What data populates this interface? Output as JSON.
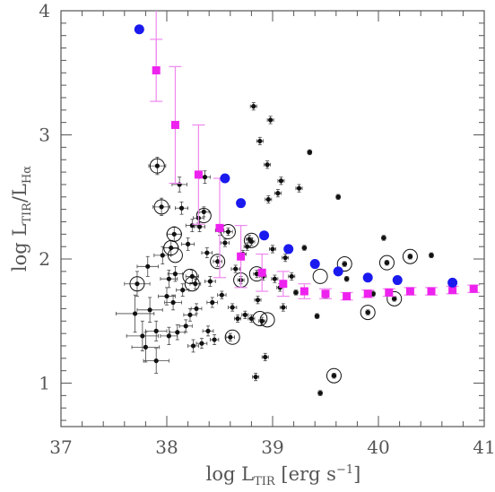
{
  "chart_data": {
    "type": "scatter",
    "title": "",
    "xlabel": {
      "main": "log L",
      "sub": "TIR",
      "unit": " [erg s",
      "sup": "−1",
      "close": "]"
    },
    "ylabel": {
      "main": "log L",
      "sub1": "TIR",
      "slash": "/L",
      "sub2": "Hα"
    },
    "xlim": [
      37,
      41
    ],
    "ylim": [
      0.65,
      4.0
    ],
    "xticks": [
      37,
      38,
      39,
      40,
      41
    ],
    "yticks": [
      1,
      2,
      3,
      4
    ],
    "grid": false,
    "legend": "none",
    "colors": {
      "axis": "#555555",
      "black": "#111111",
      "magenta": "#ee22ee",
      "magenta_err": "#ee88ee",
      "blue": "#1a1aee",
      "errbar": "#444444"
    },
    "series": [
      {
        "key": "regions",
        "marker": "small-black-dot",
        "points": [
          [
            37.7,
            1.56,
            0.18,
            0.15
          ],
          [
            37.72,
            1.8,
            0.12,
            0.1
          ],
          [
            37.77,
            1.38,
            0.15,
            0.12
          ],
          [
            37.8,
            1.29,
            0.13,
            0.12
          ],
          [
            37.82,
            1.94,
            0.1,
            0.08
          ],
          [
            37.84,
            1.59,
            0.12,
            0.1
          ],
          [
            37.9,
            1.18,
            0.12,
            0.1
          ],
          [
            37.9,
            1.42,
            0.1,
            0.08
          ],
          [
            37.91,
            2.75,
            0.08,
            0.07
          ],
          [
            37.95,
            2.42,
            0.08,
            0.07
          ],
          [
            37.96,
            2.03,
            0.08,
            0.07
          ],
          [
            38.0,
            1.7,
            0.08,
            0.07
          ],
          [
            38.02,
            1.84,
            0.08,
            0.07
          ],
          [
            38.02,
            1.38,
            0.08,
            0.07
          ],
          [
            38.04,
            2.09,
            0.07,
            0.06
          ],
          [
            38.06,
            1.65,
            0.08,
            0.06
          ],
          [
            38.07,
            2.2,
            0.07,
            0.06
          ],
          [
            38.08,
            1.88,
            0.07,
            0.06
          ],
          [
            38.1,
            1.41,
            0.07,
            0.06
          ],
          [
            38.12,
            2.6,
            0.07,
            0.06
          ],
          [
            38.14,
            2.41,
            0.06,
            0.05
          ],
          [
            38.15,
            1.75,
            0.06,
            0.05
          ],
          [
            38.18,
            1.46,
            0.06,
            0.05
          ],
          [
            38.2,
            2.12,
            0.06,
            0.05
          ],
          [
            38.22,
            1.55,
            0.06,
            0.05
          ],
          [
            38.24,
            2.27,
            0.06,
            0.05
          ],
          [
            38.24,
            1.86,
            0.06,
            0.05
          ],
          [
            38.25,
            1.3,
            0.05,
            0.05
          ],
          [
            38.27,
            1.8,
            0.05,
            0.04
          ],
          [
            38.28,
            1.6,
            0.05,
            0.04
          ],
          [
            38.3,
            2.33,
            0.05,
            0.04
          ],
          [
            38.31,
            2.26,
            0.05,
            0.04
          ],
          [
            38.33,
            1.32,
            0.05,
            0.04
          ],
          [
            38.35,
            2.38,
            0.05,
            0.04
          ],
          [
            38.36,
            2.66,
            0.05,
            0.05
          ],
          [
            38.38,
            2.05,
            0.05,
            0.04
          ],
          [
            38.39,
            1.42,
            0.05,
            0.04
          ],
          [
            38.41,
            1.82,
            0.05,
            0.04
          ],
          [
            38.43,
            1.65,
            0.05,
            0.04
          ],
          [
            38.45,
            1.35,
            0.04,
            0.04
          ],
          [
            38.48,
            1.98,
            0.04,
            0.04
          ],
          [
            38.5,
            2.23,
            0.04,
            0.04
          ],
          [
            38.52,
            1.71,
            0.04,
            0.03
          ],
          [
            38.55,
            2.13,
            0.04,
            0.03
          ],
          [
            38.58,
            2.22,
            0.04,
            0.03
          ],
          [
            38.6,
            1.37,
            0.04,
            0.03
          ],
          [
            38.62,
            1.61,
            0.04,
            0.03
          ],
          [
            38.65,
            1.92,
            0.04,
            0.03
          ],
          [
            38.67,
            1.52,
            0.03,
            0.03
          ],
          [
            38.7,
            1.83,
            0.03,
            0.03
          ],
          [
            38.72,
            2.04,
            0.03,
            0.03
          ],
          [
            38.74,
            1.55,
            0.03,
            0.03
          ],
          [
            38.76,
            2.1,
            0.03,
            0.03
          ],
          [
            38.78,
            2.16,
            0.03,
            0.03
          ],
          [
            38.8,
            1.52,
            0.03,
            0.03
          ],
          [
            38.8,
            2.14,
            0.03,
            0.03
          ],
          [
            38.82,
            3.23,
            0.03,
            0.03
          ],
          [
            38.84,
            1.05,
            0.03,
            0.03
          ],
          [
            38.85,
            1.88,
            0.03,
            0.03
          ],
          [
            38.86,
            1.67,
            0.03,
            0.03
          ],
          [
            38.88,
            2.95,
            0.03,
            0.03
          ],
          [
            38.9,
            1.5,
            0.03,
            0.03
          ],
          [
            38.91,
            1.86,
            0.03,
            0.03
          ],
          [
            38.93,
            1.21,
            0.03,
            0.03
          ],
          [
            38.95,
            2.76,
            0.03,
            0.03
          ],
          [
            38.96,
            2.48,
            0.03,
            0.03
          ],
          [
            38.98,
            3.12,
            0.03,
            0.03
          ],
          [
            39.0,
            2.08,
            0.03,
            0.03
          ],
          [
            39.02,
            1.84,
            0.03,
            0.03
          ],
          [
            39.05,
            2.53,
            0.03,
            0.03
          ],
          [
            39.07,
            1.77,
            0.03,
            0.03
          ],
          [
            39.08,
            2.63,
            0.03,
            0.03
          ],
          [
            39.1,
            1.61,
            0.03,
            0.03
          ],
          [
            39.12,
            2.01,
            0.03,
            0.03
          ],
          [
            39.18,
            1.86,
            0.03,
            0.03
          ],
          [
            39.22,
            1.73,
            0.02,
            0.02
          ],
          [
            39.25,
            2.57,
            0.03,
            0.03
          ],
          [
            39.3,
            2.09,
            0.02,
            0.02
          ],
          [
            39.35,
            2.86,
            0.02,
            0.02
          ],
          [
            39.42,
            1.54,
            0.02,
            0.02
          ],
          [
            39.45,
            0.92,
            0.02,
            0.02
          ],
          [
            39.5,
            1.7,
            0.02,
            0.02
          ],
          [
            39.58,
            1.06,
            0.02,
            0.02
          ],
          [
            39.62,
            2.5,
            0.02,
            0.02
          ],
          [
            39.68,
            1.96,
            0.02,
            0.02
          ],
          [
            39.7,
            1.84,
            0.02,
            0.02
          ],
          [
            39.9,
            1.57,
            0.02,
            0.02
          ],
          [
            39.95,
            1.72,
            0.02,
            0.02
          ],
          [
            40.05,
            2.17,
            0.02,
            0.02
          ],
          [
            40.08,
            1.97,
            0.02,
            0.02
          ],
          [
            40.15,
            1.68,
            0.02,
            0.02
          ],
          [
            40.3,
            2.02,
            0.02,
            0.02
          ],
          [
            40.5,
            2.03,
            0.02,
            0.02
          ]
        ]
      },
      {
        "key": "circled",
        "marker": "open-circle",
        "points": [
          [
            37.72,
            1.8
          ],
          [
            37.91,
            2.75
          ],
          [
            37.95,
            2.42
          ],
          [
            38.04,
            2.09
          ],
          [
            38.07,
            2.2
          ],
          [
            38.08,
            2.03
          ],
          [
            38.22,
            1.86
          ],
          [
            38.24,
            1.8
          ],
          [
            38.35,
            2.35
          ],
          [
            38.48,
            1.98
          ],
          [
            38.58,
            2.22
          ],
          [
            38.62,
            1.37
          ],
          [
            38.7,
            1.83
          ],
          [
            38.8,
            2.15
          ],
          [
            38.85,
            1.88
          ],
          [
            38.88,
            1.52
          ],
          [
            38.95,
            1.51
          ],
          [
            39.45,
            1.86
          ],
          [
            39.58,
            1.06
          ],
          [
            39.68,
            1.96
          ],
          [
            39.9,
            1.57
          ],
          [
            40.08,
            1.97
          ],
          [
            40.15,
            1.68
          ],
          [
            40.3,
            2.02
          ]
        ]
      },
      {
        "key": "magenta-squares",
        "marker": "filled-square",
        "points": [
          [
            37.9,
            3.52,
            0.25
          ],
          [
            38.08,
            3.08,
            0.47
          ],
          [
            38.3,
            2.68,
            0.4
          ],
          [
            38.5,
            2.25,
            0.4
          ],
          [
            38.7,
            2.02,
            0.25
          ],
          [
            38.9,
            1.89,
            0.15
          ],
          [
            39.1,
            1.8,
            0.1
          ],
          [
            39.3,
            1.74,
            0.06
          ],
          [
            39.5,
            1.72,
            0.04
          ],
          [
            39.7,
            1.7,
            0.03
          ],
          [
            39.9,
            1.72,
            0.03
          ],
          [
            40.1,
            1.73,
            0.03
          ],
          [
            40.3,
            1.74,
            0.03
          ],
          [
            40.5,
            1.74,
            0.03
          ],
          [
            40.7,
            1.75,
            0.03
          ],
          [
            40.9,
            1.76,
            0.03
          ]
        ],
        "top_point": [
          37.9,
          4.0
        ]
      },
      {
        "key": "blue-circles",
        "marker": "filled-circle",
        "points": [
          [
            37.74,
            3.85
          ],
          [
            38.55,
            2.65
          ],
          [
            38.7,
            2.45
          ],
          [
            38.92,
            2.19
          ],
          [
            39.15,
            2.08
          ],
          [
            39.4,
            1.96
          ],
          [
            39.62,
            1.9
          ],
          [
            39.9,
            1.85
          ],
          [
            40.18,
            1.83
          ],
          [
            40.7,
            1.81
          ]
        ]
      }
    ]
  }
}
